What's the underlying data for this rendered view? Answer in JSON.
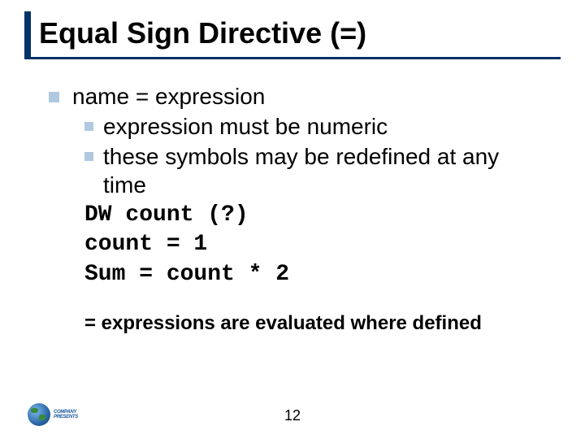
{
  "title": "Equal Sign Directive (=)",
  "bullet1": "name = expression",
  "sub1": "expression must be numeric",
  "sub2": "these symbols may be redefined at any time",
  "code1": "DW count (?)",
  "code2": "count = 1",
  "code3": "Sum = count * 2",
  "note": "= expressions are evaluated where defined",
  "pagenum": "12",
  "colors": {
    "accent": "#003366",
    "bullet": "#b0c8e0",
    "text": "#000000",
    "background": "#ffffff"
  },
  "fonts": {
    "title_size": 36,
    "body_size": 28,
    "note_size": 24,
    "code_family": "Courier New"
  }
}
